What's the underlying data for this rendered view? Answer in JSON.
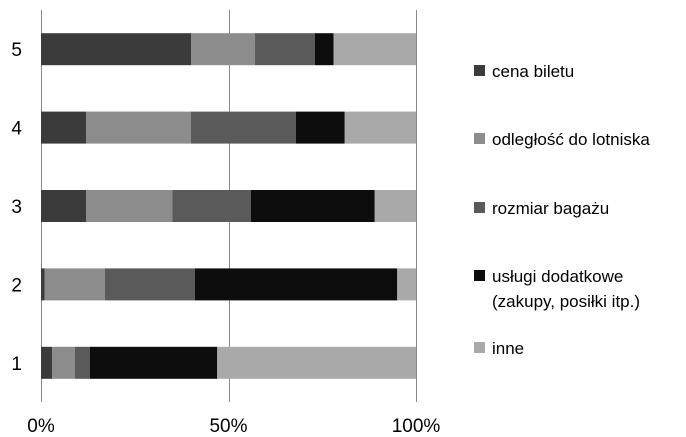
{
  "chart_data": {
    "type": "bar",
    "orientation": "horizontal",
    "stacked": true,
    "percent_stacked": true,
    "categories": [
      "1",
      "2",
      "3",
      "4",
      "5"
    ],
    "series": [
      {
        "name": "cena biletu",
        "color": "#3b3b3b",
        "values": [
          3,
          1,
          12,
          12,
          40
        ]
      },
      {
        "name": "odległość do lotniska",
        "color": "#8c8c8c",
        "values": [
          6,
          16,
          23,
          28,
          17
        ]
      },
      {
        "name": "rozmiar bagażu",
        "color": "#5a5a5a",
        "values": [
          4,
          24,
          21,
          28,
          16
        ]
      },
      {
        "name": "usługi dodatkowe (zakupy, posiłki itp.)",
        "color": "#0d0d0d",
        "values": [
          34,
          54,
          33,
          13,
          5
        ]
      },
      {
        "name": "inne",
        "color": "#a9a9a9",
        "values": [
          53,
          5,
          11,
          19,
          22
        ]
      }
    ],
    "xlim": [
      0,
      100
    ],
    "xticks": [
      "0%",
      "50%",
      "100%"
    ],
    "grid": true,
    "legend_position": "right"
  }
}
